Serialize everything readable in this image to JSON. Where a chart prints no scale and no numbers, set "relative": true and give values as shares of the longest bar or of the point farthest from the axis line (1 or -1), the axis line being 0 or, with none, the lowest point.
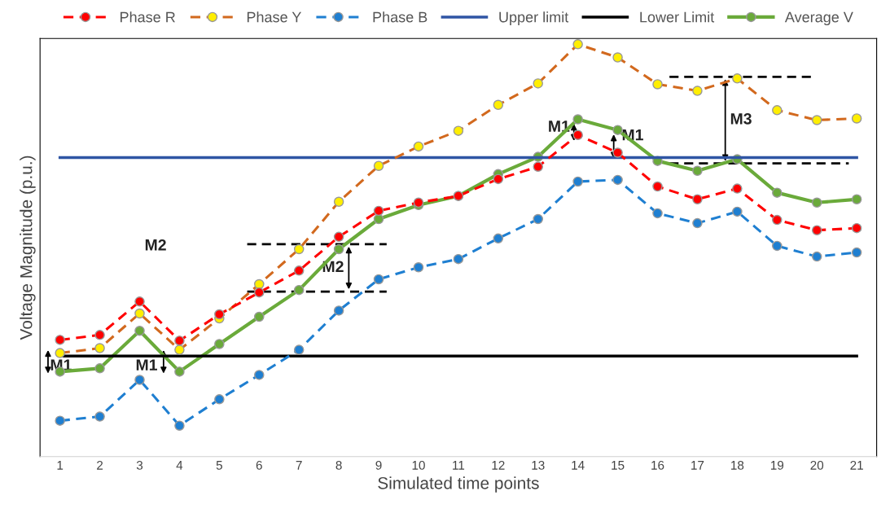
{
  "chart_data": {
    "type": "line",
    "relative": true,
    "xlabel": "Simulated time points",
    "ylabel": "Voltage Magnitude (p.u.)",
    "categories": [
      "1",
      "2",
      "3",
      "4",
      "5",
      "6",
      "7",
      "8",
      "9",
      "10",
      "11",
      "12",
      "13",
      "14",
      "15",
      "16",
      "17",
      "18",
      "19",
      "20",
      "21"
    ],
    "series": [
      {
        "name": "Phase R",
        "color": "#ff0000",
        "line_style": "dashed",
        "marker": "circle",
        "values": [
          0.283,
          0.295,
          0.376,
          0.281,
          0.345,
          0.398,
          0.451,
          0.533,
          0.596,
          0.616,
          0.632,
          0.673,
          0.703,
          0.78,
          0.737,
          0.655,
          0.624,
          0.65,
          0.574,
          0.549,
          0.554
        ]
      },
      {
        "name": "Phase Y",
        "color": "#d2691e",
        "line_style": "dashed",
        "marker": "circle",
        "values": [
          0.251,
          0.263,
          0.347,
          0.259,
          0.335,
          0.418,
          0.503,
          0.618,
          0.705,
          0.752,
          0.79,
          0.853,
          0.905,
          1,
          0.968,
          0.903,
          0.887,
          0.917,
          0.84,
          0.816,
          0.82
        ]
      },
      {
        "name": "Phase B",
        "color": "#1f7fd1",
        "line_style": "dashed",
        "marker": "circle",
        "values": [
          0.087,
          0.097,
          0.186,
          0.075,
          0.139,
          0.198,
          0.259,
          0.354,
          0.43,
          0.459,
          0.479,
          0.529,
          0.576,
          0.667,
          0.671,
          0.59,
          0.566,
          0.594,
          0.511,
          0.485,
          0.495
        ]
      },
      {
        "name": "Upper limit",
        "color": "#2f55a4",
        "line_style": "solid",
        "marker": "none",
        "values": [
          0.725,
          0.725,
          0.725,
          0.725,
          0.725,
          0.725,
          0.725,
          0.725,
          0.725,
          0.725,
          0.725,
          0.725,
          0.725,
          0.725,
          0.725,
          0.725,
          0.725,
          0.725,
          0.725,
          0.725,
          0.725
        ]
      },
      {
        "name": "Lower Limit",
        "color": "#000000",
        "line_style": "solid",
        "marker": "none",
        "values": [
          0.244,
          0.244,
          0.244,
          0.244,
          0.244,
          0.244,
          0.244,
          0.244,
          0.244,
          0.244,
          0.244,
          0.244,
          0.244,
          0.244,
          0.244,
          0.244,
          0.244,
          0.244,
          0.244,
          0.244,
          0.244
        ]
      },
      {
        "name": "Average V",
        "color": "#6aaa3a",
        "line_style": "solid",
        "marker": "circle",
        "values": [
          0.206,
          0.214,
          0.305,
          0.206,
          0.273,
          0.339,
          0.404,
          0.503,
          0.576,
          0.61,
          0.632,
          0.685,
          0.727,
          0.818,
          0.792,
          0.717,
          0.693,
          0.721,
          0.64,
          0.616,
          0.624
        ]
      }
    ],
    "annotations": [
      "M1",
      "M1",
      "M2",
      "M1",
      "M1"
    ],
    "ref_lines": [
      {
        "axis": "y",
        "value": 0.4,
        "color": "#000000",
        "line_style": "dashed"
      },
      {
        "axis": "y",
        "value": 0.515,
        "label": "M2",
        "color": "#000000",
        "line_style": "dashed"
      },
      {
        "axis": "y",
        "value": 0.711,
        "color": "#000000",
        "line_style": "dashed"
      },
      {
        "axis": "y",
        "value": 0.921,
        "label": "M3",
        "color": "#000000",
        "line_style": "dashed"
      }
    ],
    "legend": "top",
    "grid": false
  }
}
